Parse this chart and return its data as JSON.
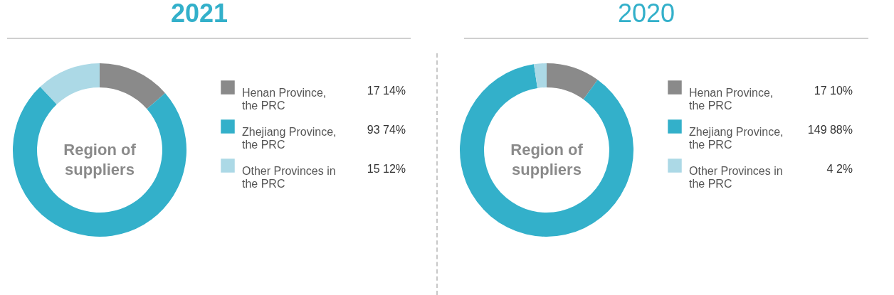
{
  "chart_data": [
    {
      "type": "donut",
      "title": "2021",
      "categories": [
        "Henan Province, the PRC",
        "Zhejiang Province, the PRC",
        "Other Provinces in the PRC"
      ],
      "values": [
        17,
        93,
        15
      ],
      "colors": [
        "#8a8a8a",
        "#33b0ca",
        "#acd9e6"
      ],
      "value_labels": [
        "17 14%",
        "93 74%",
        "15 12%"
      ],
      "legend": "right",
      "annotations": [
        "Region of suppliers"
      ]
    },
    {
      "type": "donut",
      "title": "2020",
      "categories": [
        "Henan Province, the PRC",
        "Zhejiang Province, the PRC",
        "Other Provinces in the PRC"
      ],
      "values": [
        17,
        149,
        4
      ],
      "colors": [
        "#8a8a8a",
        "#33b0ca",
        "#acd9e6"
      ],
      "value_labels": [
        "17 10%",
        "149 88%",
        "4 2%"
      ],
      "legend": "right",
      "annotations": [
        "Region of suppliers"
      ]
    }
  ]
}
